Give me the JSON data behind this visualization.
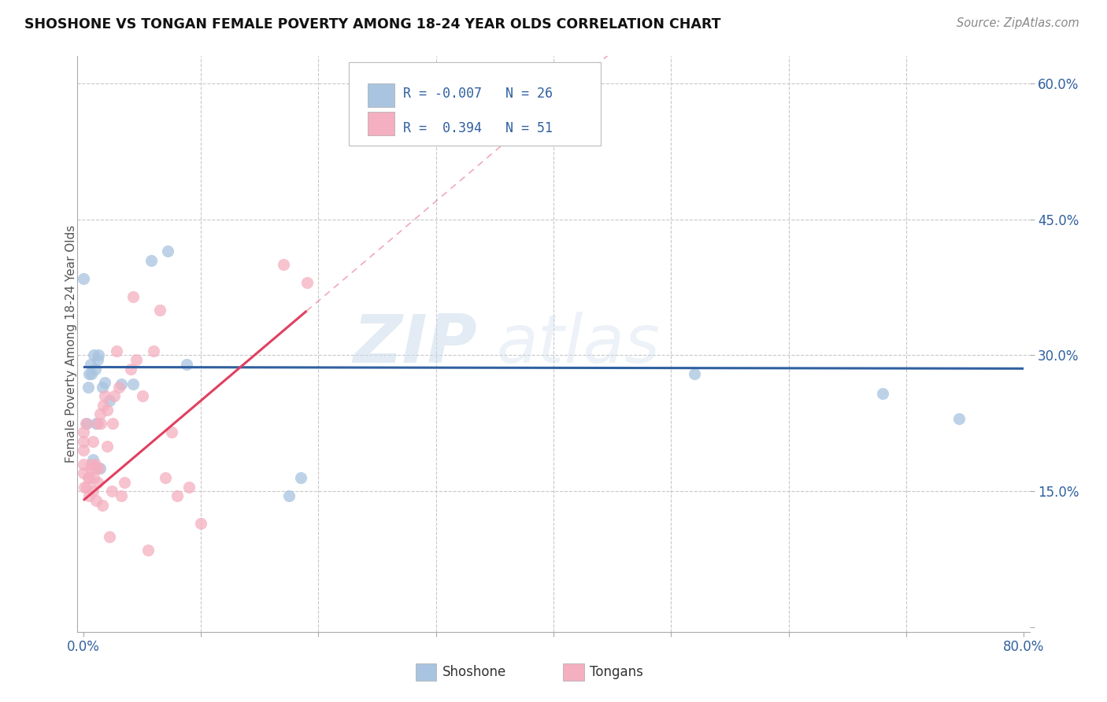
{
  "title": "SHOSHONE VS TONGAN FEMALE POVERTY AMONG 18-24 YEAR OLDS CORRELATION CHART",
  "source": "Source: ZipAtlas.com",
  "ylabel": "Female Poverty Among 18-24 Year Olds",
  "shoshone_R": "-0.007",
  "shoshone_N": "26",
  "tongan_R": "0.394",
  "tongan_N": "51",
  "shoshone_color": "#a8c4e0",
  "tongan_color": "#f4afc0",
  "shoshone_line_color": "#3060a0",
  "tongan_line_color": "#e04060",
  "watermark_zip": "ZIP",
  "watermark_atlas": "atlas",
  "background_color": "#ffffff",
  "shoshone_x": [
    0.0,
    0.003,
    0.004,
    0.005,
    0.006,
    0.007,
    0.008,
    0.009,
    0.01,
    0.011,
    0.012,
    0.013,
    0.014,
    0.016,
    0.018,
    0.022,
    0.032,
    0.042,
    0.058,
    0.072,
    0.088,
    0.175,
    0.185,
    0.52,
    0.68,
    0.745
  ],
  "shoshone_y": [
    0.385,
    0.225,
    0.265,
    0.28,
    0.29,
    0.28,
    0.185,
    0.3,
    0.285,
    0.225,
    0.295,
    0.3,
    0.175,
    0.265,
    0.27,
    0.25,
    0.268,
    0.268,
    0.405,
    0.415,
    0.29,
    0.145,
    0.165,
    0.28,
    0.258,
    0.23
  ],
  "tongan_x": [
    0.0,
    0.0,
    0.0,
    0.0,
    0.0,
    0.001,
    0.002,
    0.003,
    0.004,
    0.005,
    0.005,
    0.006,
    0.007,
    0.008,
    0.008,
    0.009,
    0.01,
    0.01,
    0.011,
    0.012,
    0.012,
    0.013,
    0.014,
    0.015,
    0.016,
    0.017,
    0.018,
    0.02,
    0.02,
    0.022,
    0.024,
    0.025,
    0.026,
    0.028,
    0.03,
    0.032,
    0.035,
    0.04,
    0.042,
    0.045,
    0.05,
    0.055,
    0.06,
    0.065,
    0.07,
    0.075,
    0.08,
    0.09,
    0.1,
    0.17,
    0.19
  ],
  "tongan_y": [
    0.17,
    0.18,
    0.195,
    0.205,
    0.215,
    0.155,
    0.225,
    0.155,
    0.165,
    0.145,
    0.165,
    0.175,
    0.18,
    0.15,
    0.205,
    0.165,
    0.175,
    0.18,
    0.14,
    0.16,
    0.225,
    0.175,
    0.235,
    0.225,
    0.135,
    0.245,
    0.255,
    0.2,
    0.24,
    0.1,
    0.15,
    0.225,
    0.255,
    0.305,
    0.265,
    0.145,
    0.16,
    0.285,
    0.365,
    0.295,
    0.255,
    0.085,
    0.305,
    0.35,
    0.165,
    0.215,
    0.145,
    0.155,
    0.115,
    0.4,
    0.38
  ],
  "xlim": [
    0.0,
    0.8
  ],
  "ylim": [
    0.0,
    0.63
  ],
  "xticks": [
    0.0,
    0.1,
    0.2,
    0.3,
    0.4,
    0.5,
    0.6,
    0.7,
    0.8
  ],
  "xticklabels": [
    "0.0%",
    "",
    "",
    "",
    "",
    "",
    "",
    "",
    "80.0%"
  ],
  "yticks": [
    0.0,
    0.15,
    0.3,
    0.45,
    0.6
  ],
  "yticklabels": [
    "",
    "15.0%",
    "30.0%",
    "45.0%",
    "60.0%"
  ],
  "grid_color": "#c8c8c8",
  "grid_style": "--",
  "marker_size": 120,
  "marker_alpha": 0.75,
  "shoshone_line_y_intercept": 0.287,
  "shoshone_line_slope": -0.002,
  "tongan_line_y_intercept": 0.14,
  "tongan_line_slope": 1.1
}
